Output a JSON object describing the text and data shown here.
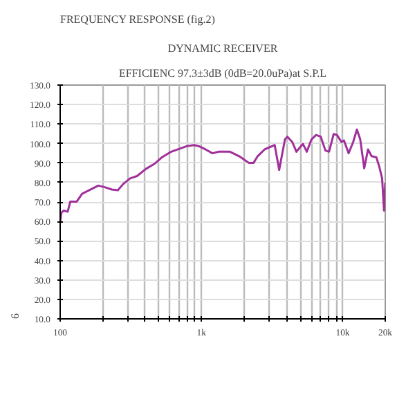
{
  "chart_data": {
    "type": "line",
    "title": "FREQUENCY RESPONSE (fig.2)",
    "subtitle": "DYNAMIC RECEIVER",
    "annotations": [
      "EFFICIENC 97.3±3dB (0dB=20.0uPa)at S.P.L",
      "6"
    ],
    "x": [
      100,
      102,
      106,
      113,
      118,
      131,
      143,
      160,
      186,
      207,
      232,
      256,
      280,
      313,
      350,
      405,
      470,
      527,
      611,
      710,
      792,
      886,
      954,
      1068,
      1196,
      1327,
      1590,
      1848,
      2160,
      2340,
      2500,
      2800,
      3300,
      3550,
      3900,
      4060,
      4400,
      4700,
      4950,
      5230,
      5570,
      6010,
      6480,
      6990,
      7540,
      8000,
      8630,
      9100,
      9810,
      10200,
      11000,
      11850,
      12600,
      13300,
      14200,
      15100,
      16000,
      17300,
      18100,
      19000,
      19600,
      20000
    ],
    "series": [
      {
        "color": "#a0309a",
        "values": [
          59.3,
          64.5,
          65.6,
          65,
          70.2,
          70.2,
          74.2,
          76,
          78.4,
          77.6,
          76.4,
          76,
          79.3,
          82.1,
          83.3,
          87,
          89.8,
          93,
          95.8,
          97.5,
          98.7,
          99.2,
          98.7,
          97,
          95,
          95.8,
          95.8,
          93.5,
          90.1,
          90.1,
          93.5,
          97,
          99.2,
          86.4,
          102.1,
          103.5,
          100.7,
          95.8,
          97.8,
          99.8,
          95.8,
          102.1,
          104.4,
          103.5,
          96.4,
          95.8,
          104.9,
          104.4,
          100.7,
          101.6,
          95,
          100.7,
          107.2,
          102.1,
          87.3,
          97,
          93.5,
          92.9,
          88.4,
          82.1,
          65.6,
          79.9
        ]
      }
    ],
    "log": "x",
    "xlim": [
      100,
      20000
    ],
    "xticks": [
      100,
      {
        "value": 200,
        "label": null
      },
      {
        "value": 300,
        "label": null
      },
      {
        "value": 400,
        "label": null
      },
      {
        "value": 500,
        "label": null
      },
      {
        "value": 600,
        "label": null
      },
      {
        "value": 700,
        "label": null
      },
      {
        "value": 800,
        "label": null
      },
      {
        "value": 900,
        "label": null
      },
      {
        "value": 1000,
        "label": "1k"
      },
      {
        "value": 2000,
        "label": null
      },
      {
        "value": 3000,
        "label": null
      },
      {
        "value": 4000,
        "label": null
      },
      {
        "value": 5000,
        "label": null
      },
      {
        "value": 6000,
        "label": null
      },
      {
        "value": 7000,
        "label": null
      },
      {
        "value": 8000,
        "label": null
      },
      {
        "value": 9000,
        "label": null
      },
      {
        "value": 10000,
        "label": "10k"
      },
      {
        "value": 20000,
        "label": "20k"
      }
    ],
    "ylim": [
      10,
      130
    ],
    "yticks": [
      {
        "value": 10,
        "label": "10.0"
      },
      {
        "value": 20,
        "label": "20.0"
      },
      {
        "value": 30,
        "label": "30.0"
      },
      {
        "value": 40,
        "label": "40.0"
      },
      {
        "value": 50,
        "label": "50.0"
      },
      {
        "value": 60,
        "label": "60.0"
      },
      {
        "value": 70,
        "label": "70.0"
      },
      {
        "value": 80,
        "label": "80.0"
      },
      {
        "value": 90,
        "label": "90.0"
      },
      {
        "value": 100,
        "label": "100.0"
      },
      {
        "value": 110,
        "label": "110.0"
      },
      {
        "value": 120,
        "label": "120.0"
      },
      {
        "value": 130,
        "label": "130.0"
      }
    ],
    "grid": true,
    "marker": "none",
    "line_style": "solid"
  }
}
